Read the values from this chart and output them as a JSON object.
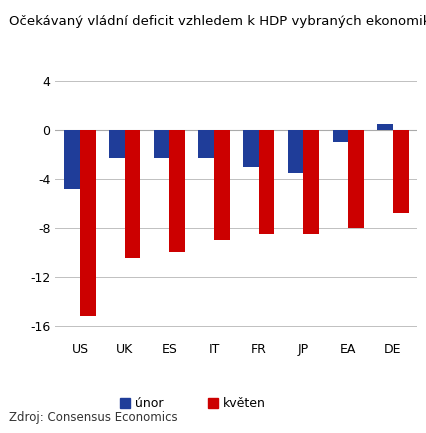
{
  "title": "Očekávaný vládní deficit vzhledem k HDP vybraných ekonomik, %",
  "categories": [
    "US",
    "UK",
    "ES",
    "IT",
    "FR",
    "JP",
    "EA",
    "DE"
  ],
  "unor_values": [
    -4.8,
    -2.3,
    -2.3,
    -2.3,
    -3.0,
    -3.5,
    -1.0,
    0.5
  ],
  "kveten_values": [
    -15.2,
    -10.5,
    -10.0,
    -9.0,
    -8.5,
    -8.5,
    -8.0,
    -6.8
  ],
  "unor_color": "#1f3d99",
  "kveten_color": "#cc0000",
  "ylim": [
    -17,
    5
  ],
  "yticks": [
    4,
    0,
    -4,
    -8,
    -12,
    -16
  ],
  "source": "Zdroj: Consensus Economics",
  "legend_unor": "únor",
  "legend_kveten": "květen",
  "bar_width": 0.35,
  "background_color": "#ffffff",
  "grid_color": "#c0c0c0",
  "title_fontsize": 9.5,
  "tick_fontsize": 9,
  "source_fontsize": 8.5
}
